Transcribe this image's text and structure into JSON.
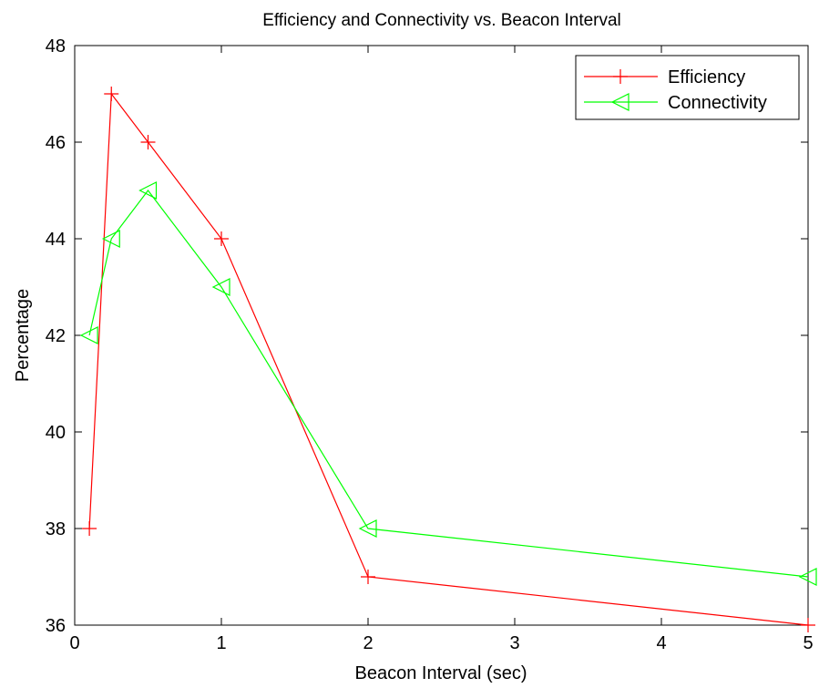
{
  "chart_data": {
    "type": "line",
    "title": "Efficiency and Connectivity vs. Beacon Interval",
    "xlabel": "Beacon Interval (sec)",
    "ylabel": "Percentage",
    "x_ticks": [
      0,
      1,
      2,
      3,
      4,
      5
    ],
    "y_ticks": [
      36,
      38,
      40,
      42,
      44,
      46,
      48
    ],
    "xlim": [
      0,
      5
    ],
    "ylim": [
      36,
      48
    ],
    "grid": false,
    "legend_position": "top-right",
    "series": [
      {
        "name": "Efficiency",
        "color": "#ff0000",
        "marker": "plus",
        "x": [
          0.1,
          0.25,
          0.5,
          1,
          2,
          5
        ],
        "values": [
          38,
          47,
          46,
          44,
          37,
          36
        ]
      },
      {
        "name": "Connectivity",
        "color": "#00ff00",
        "marker": "triangle-left",
        "x": [
          0.1,
          0.25,
          0.5,
          1,
          2,
          5
        ],
        "values": [
          42,
          44,
          45,
          43,
          38,
          37
        ]
      }
    ]
  }
}
